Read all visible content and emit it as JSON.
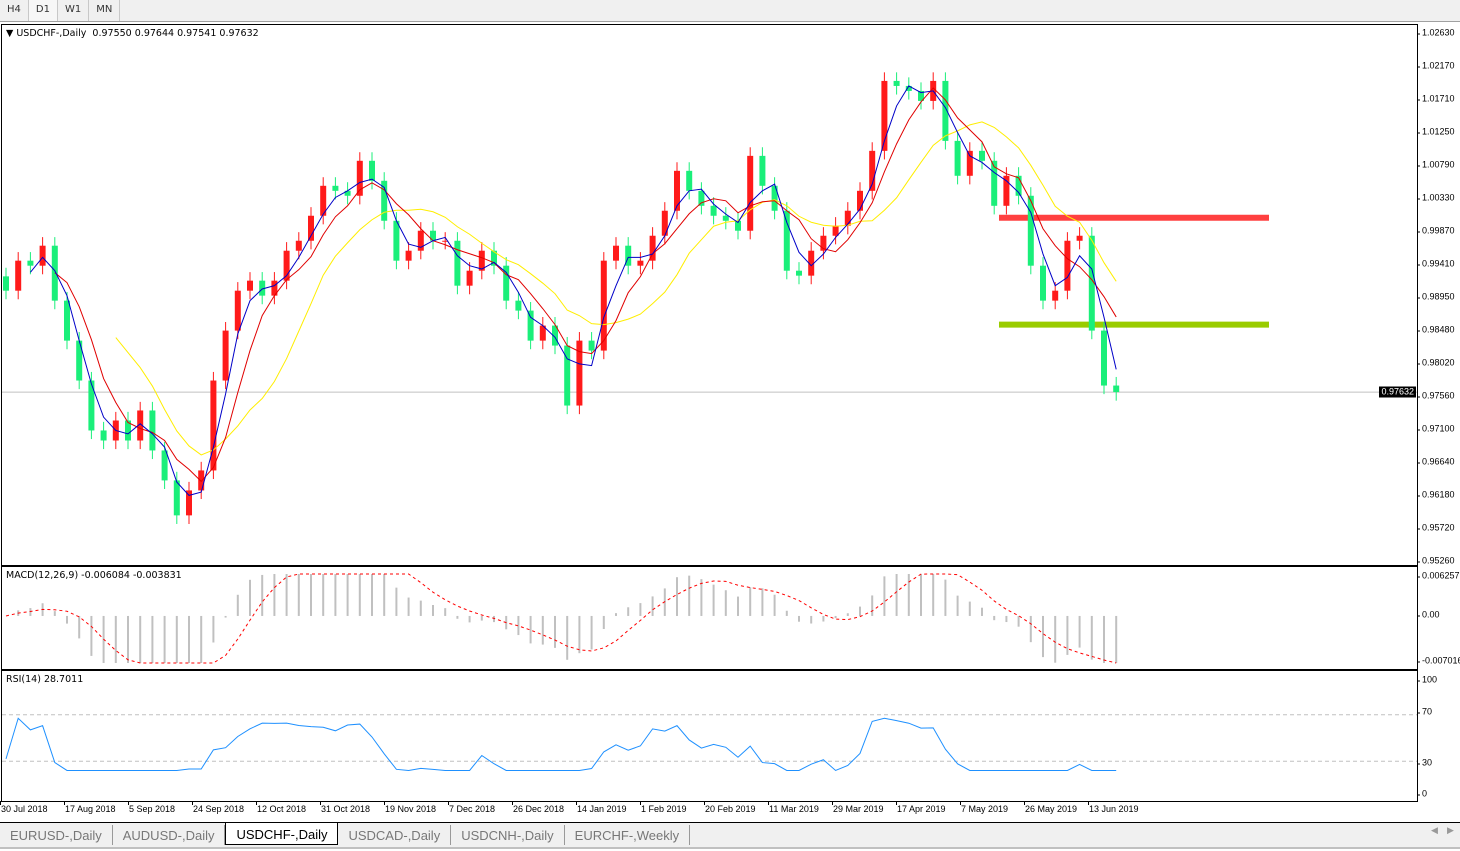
{
  "toolbar": {
    "timeframes": [
      "H4",
      "D1",
      "W1",
      "MN"
    ],
    "active": "D1"
  },
  "header": {
    "symbol": "USDCHF-,Daily",
    "open": "0.97550",
    "high": "0.97644",
    "low": "0.97541",
    "close": "0.97632"
  },
  "macd": {
    "label": "MACD(12,26,9) -0.006084 -0.003831",
    "axis": [
      "0.006257",
      "0.00",
      "-0.007016"
    ]
  },
  "rsi": {
    "label": "RSI(14) 28.7011",
    "axis": [
      "100",
      "70",
      "30",
      "0"
    ]
  },
  "price_axis": [
    "1.02630",
    "1.02170",
    "1.01710",
    "1.01250",
    "1.00790",
    "1.00330",
    "0.99870",
    "0.99410",
    "0.98950",
    "0.98480",
    "0.98020",
    "0.97560",
    "0.97100",
    "0.96640",
    "0.96180",
    "0.95720",
    "0.95260"
  ],
  "current_price": "0.97632",
  "dates": [
    "30 Jul 2018",
    "17 Aug 2018",
    "5 Sep 2018",
    "24 Sep 2018",
    "12 Oct 2018",
    "31 Oct 2018",
    "19 Nov 2018",
    "7 Dec 2018",
    "26 Dec 2018",
    "14 Jan 2019",
    "1 Feb 2019",
    "20 Feb 2019",
    "11 Mar 2019",
    "29 Mar 2019",
    "17 Apr 2019",
    "7 May 2019",
    "26 May 2019",
    "13 Jun 2019"
  ],
  "tabs": [
    "EURUSD-,Daily",
    "AUDUSD-,Daily",
    "USDCHF-,Daily",
    "USDCAD-,Daily",
    "USDCNH-,Daily",
    "EURCHF-,Weekly"
  ],
  "active_tab": "USDCHF-,Daily",
  "colors": {
    "bull": "#ff1a1a",
    "bear": "#1aef7a",
    "ma_fast": "#0000c8",
    "ma_mid": "#e00000",
    "ma_slow": "#ffee00",
    "resistance": "#ff4040",
    "support": "#99cc00",
    "macd_hist": "#c0c0c0",
    "macd_signal": "#ff0000",
    "rsi": "#1e90ff"
  },
  "chart_data": {
    "type": "candlestick",
    "symbol": "USDCHF-,Daily",
    "ylim": [
      0.9526,
      1.0263
    ],
    "closes": [
      0.99047,
      0.99466,
      0.99396,
      0.99675,
      0.98908,
      0.9835,
      0.97793,
      0.97096,
      0.96956,
      0.97235,
      0.96956,
      0.97375,
      0.96817,
      0.96399,
      0.95911,
      0.96259,
      0.96538,
      0.97793,
      0.9849,
      0.99047,
      0.99187,
      0.98978,
      0.99187,
      0.99605,
      0.99744,
      1.00093,
      1.00511,
      1.00441,
      1.00372,
      1.0086,
      1.00581,
      1.00023,
      0.99466,
      0.99605,
      0.99884,
      0.99744,
      0.99744,
      0.99117,
      0.99326,
      0.99605,
      0.99396,
      0.98908,
      0.98769,
      0.9835,
      0.9856,
      0.98281,
      0.97444,
      0.9835,
      0.98211,
      0.99466,
      0.99675,
      0.99396,
      0.99466,
      0.99814,
      1.00163,
      1.0072,
      1.00441,
      1.00232,
      1.00093,
      1.00023,
      0.99884,
      1.00929,
      1.00511,
      1.00163,
      0.99326,
      0.99257,
      0.99605,
      0.99814,
      0.99954,
      1.00163,
      1.00441,
      1.00999,
      1.01975,
      1.01905,
      1.01835,
      1.01696,
      1.01975,
      1.01138,
      1.00651,
      1.00999,
      1.0086,
      1.00232,
      1.00651,
      1.00372,
      0.99396,
      0.98908,
      0.99047,
      0.99744,
      0.99814,
      0.9849,
      0.97723,
      0.97632
    ],
    "horizontal_lines": [
      {
        "price": 1.00065,
        "role": "resistance"
      },
      {
        "price": 0.98573,
        "role": "support"
      },
      {
        "price": 0.97632,
        "role": "current"
      }
    ],
    "moving_averages": [
      5,
      10,
      20
    ],
    "indicators": [
      "MACD(12,26,9)",
      "RSI(14)"
    ]
  }
}
